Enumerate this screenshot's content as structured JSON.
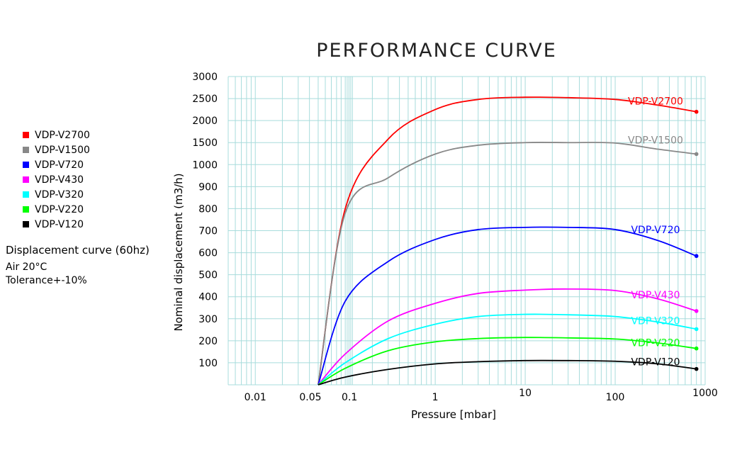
{
  "chart_data": {
    "type": "line",
    "title": "PERFORMANCE CURVE",
    "xlabel": "Pressure [mbar]",
    "ylabel": "Nominal displacement (m3/h)",
    "x_scale": "log",
    "xlim": [
      0.005,
      1000
    ],
    "x_ticks": [
      "0.01",
      "0.05",
      "0.1",
      "1",
      "10",
      "100",
      "1000"
    ],
    "y_ticks": [
      "100",
      "200",
      "300",
      "400",
      "500",
      "600",
      "700",
      "800",
      "900",
      "1000",
      "1500",
      "2000",
      "2500",
      "3000"
    ],
    "y_scale": "piecewise: linear 0-1000, then 500 per gridline to 3000",
    "grid": true,
    "legend_placement": "left",
    "series": [
      {
        "name": "VDP-V2700",
        "color": "#ff0000",
        "x": [
          0.05,
          0.1,
          0.3,
          1,
          3,
          10,
          30,
          100,
          300,
          800
        ],
        "y": [
          0,
          800,
          1580,
          2250,
          2480,
          2530,
          2520,
          2480,
          2350,
          2200
        ]
      },
      {
        "name": "VDP-V1500",
        "color": "#888888",
        "x": [
          0.05,
          0.1,
          0.3,
          1,
          3,
          10,
          30,
          100,
          300,
          800
        ],
        "y": [
          0,
          780,
          940,
          1240,
          1440,
          1500,
          1500,
          1490,
          1350,
          1240
        ]
      },
      {
        "name": "VDP-V720",
        "color": "#0000ff",
        "x": [
          0.05,
          0.1,
          0.3,
          1,
          3,
          10,
          30,
          100,
          300,
          800
        ],
        "y": [
          0,
          380,
          560,
          660,
          705,
          715,
          715,
          705,
          655,
          585
        ]
      },
      {
        "name": "VDP-V430",
        "color": "#ff00ff",
        "x": [
          0.05,
          0.1,
          0.3,
          1,
          3,
          10,
          30,
          100,
          300,
          800
        ],
        "y": [
          0,
          140,
          290,
          370,
          415,
          430,
          435,
          428,
          390,
          335
        ]
      },
      {
        "name": "VDP-V320",
        "color": "#00ffff",
        "x": [
          0.05,
          0.1,
          0.3,
          1,
          3,
          10,
          30,
          100,
          300,
          800
        ],
        "y": [
          0,
          100,
          210,
          275,
          310,
          320,
          318,
          310,
          285,
          253
        ]
      },
      {
        "name": "VDP-V220",
        "color": "#00ff00",
        "x": [
          0.05,
          0.1,
          0.3,
          1,
          3,
          10,
          30,
          100,
          300,
          800
        ],
        "y": [
          0,
          75,
          155,
          195,
          210,
          215,
          213,
          208,
          190,
          165
        ]
      },
      {
        "name": "VDP-V120",
        "color": "#000000",
        "x": [
          0.05,
          0.1,
          0.3,
          1,
          3,
          10,
          30,
          100,
          300,
          800
        ],
        "y": [
          0,
          35,
          70,
          95,
          105,
          110,
          110,
          107,
          95,
          72
        ]
      }
    ]
  },
  "notes": [
    "Displacement curve (60hz)",
    "Air  20°C",
    "Tolerance+-10%"
  ]
}
